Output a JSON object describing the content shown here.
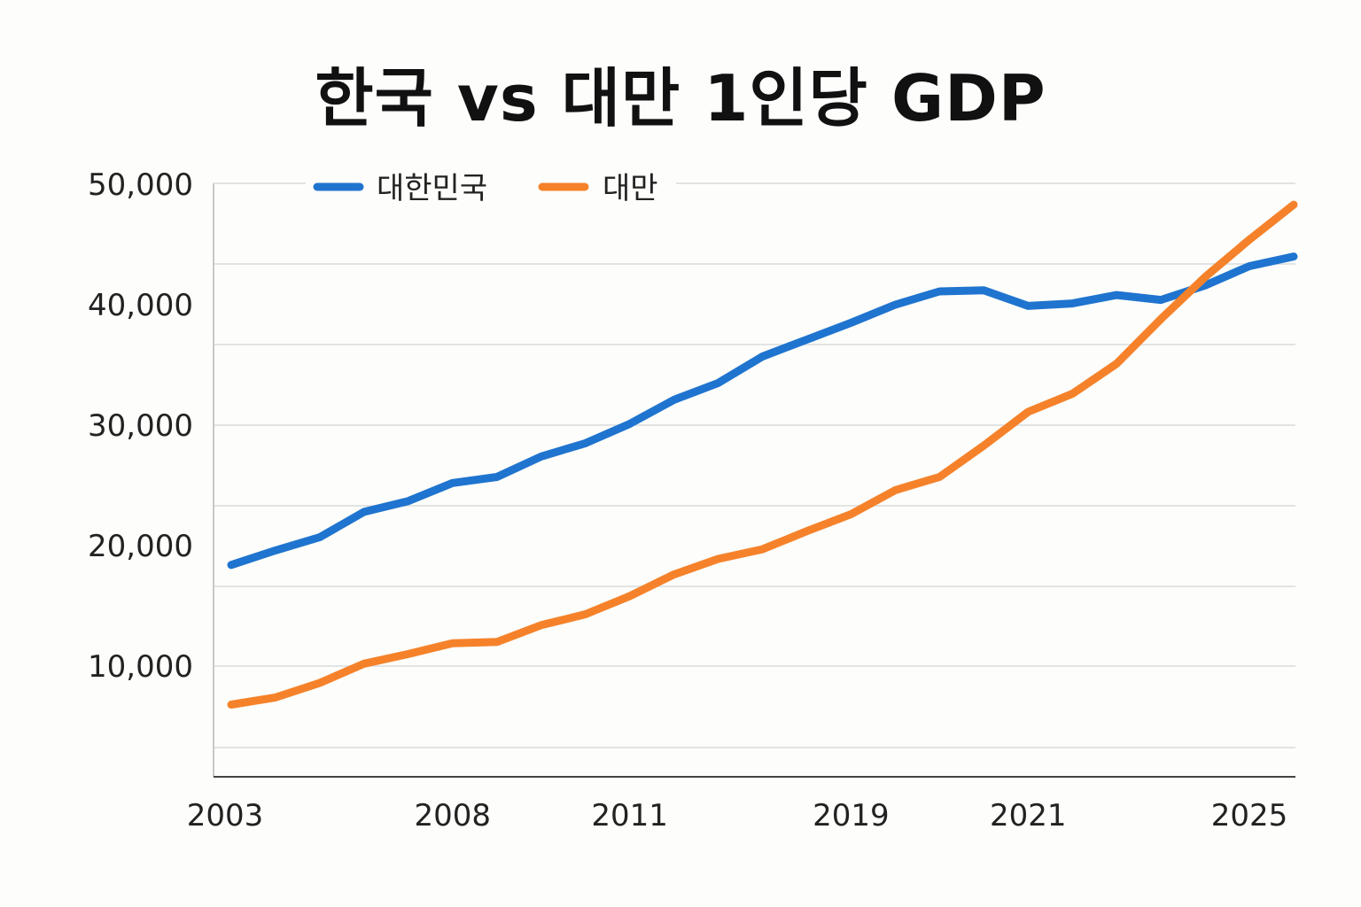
{
  "chart_data": {
    "type": "line",
    "title": "한국 vs 대만 1인당 GDP",
    "xlabel": "",
    "ylabel": "",
    "ylim": [
      0,
      50000
    ],
    "y_ticks": [
      {
        "value": 10000,
        "label": "10,000"
      },
      {
        "value": 20000,
        "label": "20,000"
      },
      {
        "value": 30000,
        "label": "30,000"
      },
      {
        "value": 40000,
        "label": "40,000"
      },
      {
        "value": 50000,
        "label": "50,000"
      }
    ],
    "x_ticks": [
      {
        "index": 0,
        "label": "2003"
      },
      {
        "index": 5,
        "label": "2008"
      },
      {
        "index": 9,
        "label": "2011"
      },
      {
        "index": 14,
        "label": "2019"
      },
      {
        "index": 18,
        "label": "2021"
      },
      {
        "index": 23,
        "label": "2025"
      }
    ],
    "grid": true,
    "legend_position": "top-left",
    "series": [
      {
        "name": "대한민국",
        "color": "#1f74cf",
        "values": [
          18400,
          19600,
          20700,
          22800,
          23700,
          25200,
          25700,
          27400,
          28500,
          30100,
          32100,
          33500,
          35700,
          37100,
          38500,
          40000,
          41100,
          41200,
          39900,
          40100,
          40800,
          40400,
          41600,
          43200,
          44000
        ]
      },
      {
        "name": "대만",
        "color": "#f5822a",
        "values": [
          6800,
          7400,
          8600,
          10200,
          11000,
          11900,
          12000,
          13400,
          14300,
          15800,
          17600,
          18900,
          19700,
          21200,
          22600,
          24600,
          25700,
          28300,
          31100,
          32600,
          35100,
          38800,
          42300,
          45400,
          48300
        ]
      }
    ]
  }
}
